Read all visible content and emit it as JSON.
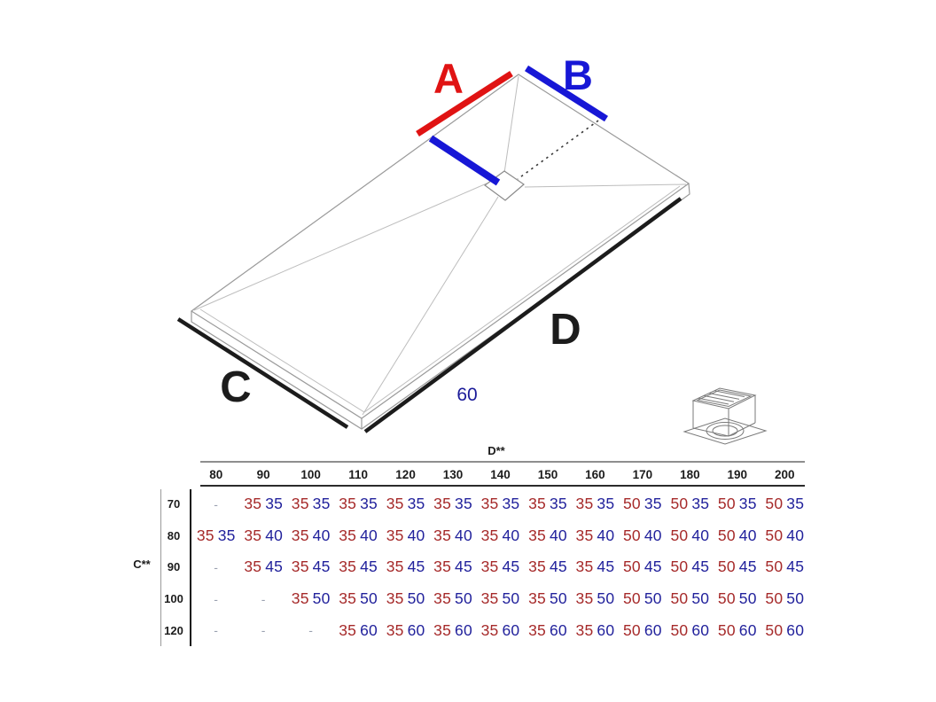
{
  "colors": {
    "accent_red": "#e01313",
    "accent_blue": "#1717d6",
    "table_red": "#a62a2a",
    "table_blue": "#22229c",
    "dim_black": "#1c1c1c",
    "dim_navy": "#1b1b99",
    "rule_grey": "#8e8e8e"
  },
  "diagram": {
    "label_a": "A",
    "label_b": "B",
    "label_c": "C",
    "label_d": "D",
    "center_dim": "60",
    "icons": [
      "drain-icon"
    ]
  },
  "table": {
    "col_axis_label": "D**",
    "row_axis_label": "C**",
    "columns": [
      "80",
      "90",
      "100",
      "110",
      "120",
      "130",
      "140",
      "150",
      "160",
      "170",
      "180",
      "190",
      "200"
    ],
    "empty_cell": "-",
    "rows": [
      {
        "label": "70",
        "cells": [
          null,
          [
            "35",
            "35"
          ],
          [
            "35",
            "35"
          ],
          [
            "35",
            "35"
          ],
          [
            "35",
            "35"
          ],
          [
            "35",
            "35"
          ],
          [
            "35",
            "35"
          ],
          [
            "35",
            "35"
          ],
          [
            "35",
            "35"
          ],
          [
            "50",
            "35"
          ],
          [
            "50",
            "35"
          ],
          [
            "50",
            "35"
          ],
          [
            "50",
            "35"
          ]
        ]
      },
      {
        "label": "80",
        "cells": [
          [
            "35",
            "35"
          ],
          [
            "35",
            "40"
          ],
          [
            "35",
            "40"
          ],
          [
            "35",
            "40"
          ],
          [
            "35",
            "40"
          ],
          [
            "35",
            "40"
          ],
          [
            "35",
            "40"
          ],
          [
            "35",
            "40"
          ],
          [
            "35",
            "40"
          ],
          [
            "50",
            "40"
          ],
          [
            "50",
            "40"
          ],
          [
            "50",
            "40"
          ],
          [
            "50",
            "40"
          ]
        ]
      },
      {
        "label": "90",
        "cells": [
          null,
          [
            "35",
            "45"
          ],
          [
            "35",
            "45"
          ],
          [
            "35",
            "45"
          ],
          [
            "35",
            "45"
          ],
          [
            "35",
            "45"
          ],
          [
            "35",
            "45"
          ],
          [
            "35",
            "45"
          ],
          [
            "35",
            "45"
          ],
          [
            "50",
            "45"
          ],
          [
            "50",
            "45"
          ],
          [
            "50",
            "45"
          ],
          [
            "50",
            "45"
          ]
        ]
      },
      {
        "label": "100",
        "cells": [
          null,
          null,
          [
            "35",
            "50"
          ],
          [
            "35",
            "50"
          ],
          [
            "35",
            "50"
          ],
          [
            "35",
            "50"
          ],
          [
            "35",
            "50"
          ],
          [
            "35",
            "50"
          ],
          [
            "35",
            "50"
          ],
          [
            "50",
            "50"
          ],
          [
            "50",
            "50"
          ],
          [
            "50",
            "50"
          ],
          [
            "50",
            "50"
          ]
        ]
      },
      {
        "label": "120",
        "cells": [
          null,
          null,
          null,
          [
            "35",
            "60"
          ],
          [
            "35",
            "60"
          ],
          [
            "35",
            "60"
          ],
          [
            "35",
            "60"
          ],
          [
            "35",
            "60"
          ],
          [
            "35",
            "60"
          ],
          [
            "50",
            "60"
          ],
          [
            "50",
            "60"
          ],
          [
            "50",
            "60"
          ],
          [
            "50",
            "60"
          ]
        ]
      }
    ]
  }
}
